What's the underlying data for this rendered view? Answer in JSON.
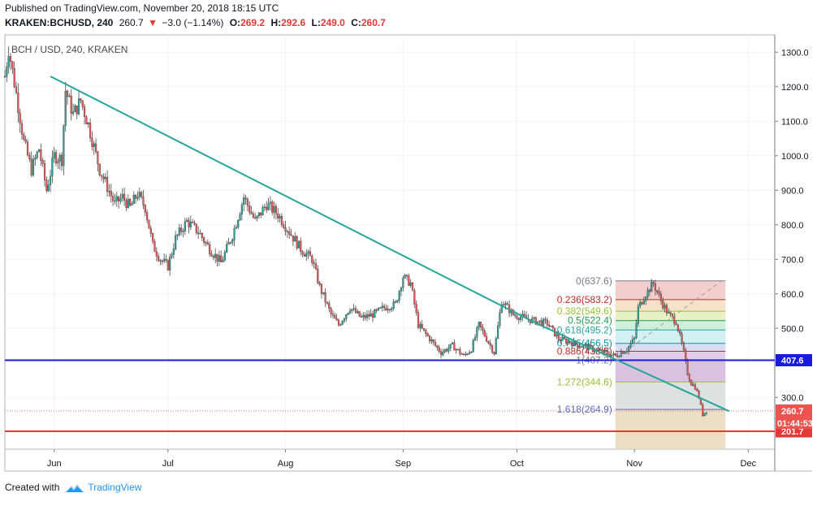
{
  "header": {
    "published": "Published on TradingView.com, November 20, 2018 18:15 UTC",
    "symbol": "KRAKEN:BCHUSD, 240",
    "last": "260.7",
    "change_arrow": "▼",
    "change": "−3.0 (−1.14%)",
    "open_label": "O:",
    "open": "269.2",
    "high_label": "H:",
    "high": "292.6",
    "low_label": "L:",
    "low": "249.0",
    "close_label": "C:",
    "close": "260.7"
  },
  "chart_data": {
    "type": "candlestick",
    "title": "BCH / USD, 240, KRAKEN",
    "x_ticks": [
      {
        "label": "Jun",
        "date": "2018-06-01"
      },
      {
        "label": "Jul",
        "date": "2018-07-01"
      },
      {
        "label": "Aug",
        "date": "2018-08-01"
      },
      {
        "label": "Sep",
        "date": "2018-09-01"
      },
      {
        "label": "Oct",
        "date": "2018-10-01"
      },
      {
        "label": "Nov",
        "date": "2018-11-01"
      },
      {
        "label": "Dec",
        "date": "2018-12-01"
      }
    ],
    "y_ticks": [
      "1300.0",
      "1200.0",
      "1100.0",
      "1000.0",
      "900.0",
      "800.0",
      "700.0",
      "600.0",
      "500.0",
      "300.0"
    ],
    "y_tick_values": [
      1300,
      1200,
      1100,
      1000,
      900,
      800,
      700,
      600,
      500,
      300
    ],
    "ylim": [
      150,
      1350
    ],
    "xlim": [
      "2018-05-19",
      "2018-12-08"
    ],
    "price_path": [
      [
        "2018-05-19",
        1230
      ],
      [
        "2018-05-20",
        1310
      ],
      [
        "2018-05-22",
        1180
      ],
      [
        "2018-05-24",
        1040
      ],
      [
        "2018-05-26",
        960
      ],
      [
        "2018-05-28",
        1020
      ],
      [
        "2018-05-30",
        900
      ],
      [
        "2018-06-01",
        1000
      ],
      [
        "2018-06-03",
        990
      ],
      [
        "2018-06-04",
        1190
      ],
      [
        "2018-06-06",
        1120
      ],
      [
        "2018-06-08",
        1160
      ],
      [
        "2018-06-10",
        1090
      ],
      [
        "2018-06-13",
        960
      ],
      [
        "2018-06-15",
        910
      ],
      [
        "2018-06-17",
        860
      ],
      [
        "2018-06-19",
        880
      ],
      [
        "2018-06-21",
        850
      ],
      [
        "2018-06-23",
        890
      ],
      [
        "2018-06-25",
        850
      ],
      [
        "2018-06-27",
        740
      ],
      [
        "2018-06-29",
        700
      ],
      [
        "2018-07-01",
        680
      ],
      [
        "2018-07-03",
        760
      ],
      [
        "2018-07-06",
        810
      ],
      [
        "2018-07-09",
        780
      ],
      [
        "2018-07-12",
        730
      ],
      [
        "2018-07-15",
        690
      ],
      [
        "2018-07-18",
        770
      ],
      [
        "2018-07-21",
        880
      ],
      [
        "2018-07-24",
        810
      ],
      [
        "2018-07-27",
        860
      ],
      [
        "2018-07-30",
        830
      ],
      [
        "2018-08-02",
        780
      ],
      [
        "2018-08-05",
        730
      ],
      [
        "2018-08-08",
        700
      ],
      [
        "2018-08-10",
        620
      ],
      [
        "2018-08-13",
        540
      ],
      [
        "2018-08-15",
        510
      ],
      [
        "2018-08-18",
        560
      ],
      [
        "2018-08-21",
        530
      ],
      [
        "2018-08-24",
        540
      ],
      [
        "2018-08-27",
        560
      ],
      [
        "2018-08-30",
        570
      ],
      [
        "2018-09-01",
        650
      ],
      [
        "2018-09-03",
        630
      ],
      [
        "2018-09-05",
        510
      ],
      [
        "2018-09-08",
        470
      ],
      [
        "2018-09-11",
        430
      ],
      [
        "2018-09-14",
        450
      ],
      [
        "2018-09-17",
        420
      ],
      [
        "2018-09-19",
        440
      ],
      [
        "2018-09-21",
        510
      ],
      [
        "2018-09-23",
        470
      ],
      [
        "2018-09-25",
        430
      ],
      [
        "2018-09-27",
        580
      ],
      [
        "2018-09-30",
        540
      ],
      [
        "2018-10-03",
        530
      ],
      [
        "2018-10-06",
        520
      ],
      [
        "2018-10-09",
        515
      ],
      [
        "2018-10-12",
        470
      ],
      [
        "2018-10-15",
        460
      ],
      [
        "2018-10-18",
        450
      ],
      [
        "2018-10-21",
        440
      ],
      [
        "2018-10-24",
        430
      ],
      [
        "2018-10-27",
        420
      ],
      [
        "2018-10-30",
        440
      ],
      [
        "2018-11-01",
        470
      ],
      [
        "2018-11-02",
        560
      ],
      [
        "2018-11-04",
        600
      ],
      [
        "2018-11-06",
        630
      ],
      [
        "2018-11-08",
        580
      ],
      [
        "2018-11-10",
        540
      ],
      [
        "2018-11-12",
        520
      ],
      [
        "2018-11-14",
        430
      ],
      [
        "2018-11-15",
        370
      ],
      [
        "2018-11-16",
        340
      ],
      [
        "2018-11-17",
        330
      ],
      [
        "2018-11-18",
        300
      ],
      [
        "2018-11-19",
        250
      ],
      [
        "2018-11-20",
        261
      ]
    ],
    "trendlines": [
      {
        "from": [
          "2018-05-31",
          1230
        ],
        "to": [
          "2018-10-06",
          515
        ],
        "color": "#26a69a"
      },
      {
        "from": [
          "2018-10-06",
          515
        ],
        "to": [
          "2018-11-26",
          260
        ],
        "color": "#26a69a"
      }
    ],
    "dashed_line": {
      "from": [
        "2018-10-28",
        420
      ],
      "to": [
        "2018-11-24",
        637.6
      ],
      "color": "#9e9e9e"
    },
    "horizontal_levels": [
      {
        "value": 407.6,
        "label": "407.6",
        "color": "#1a1adb"
      },
      {
        "value": 201.7,
        "label": "201.7",
        "color": "#e53935"
      },
      {
        "value": 260.7,
        "label": "260.7",
        "color": "#e57373",
        "dotted": true,
        "countdown": "01:44:53"
      }
    ],
    "fib_retracement": {
      "start_date": "2018-10-27",
      "end_date": "2018-11-25",
      "levels": [
        {
          "label": "0(637.6)",
          "value": 637.6,
          "color": "#787b86",
          "fill": "#f2c4c4"
        },
        {
          "label": "0.236(583.2)",
          "value": 583.2,
          "color": "#c62828",
          "fill": "#f5dcc2"
        },
        {
          "label": "0.382(549.6)",
          "value": 549.6,
          "color": "#9abf36",
          "fill": "#e2f0b8"
        },
        {
          "label": "0.5(522.4)",
          "value": 522.4,
          "color": "#1ea04f",
          "fill": "#c7ecd2"
        },
        {
          "label": "0.618(495.2)",
          "value": 495.2,
          "color": "#26a69a",
          "fill": "#cbeef0"
        },
        {
          "label": "0.786(456.5)",
          "value": 456.5,
          "color": "#0097a7",
          "fill": "#d3d7ef"
        },
        {
          "label": "0.886(433.5)",
          "value": 433.5,
          "color": "#c62828",
          "fill": "#dbc6e6"
        },
        {
          "label": "1(407.2)",
          "value": 407.2,
          "color": "#787b86",
          "fill": "#d5b6dc"
        },
        {
          "label": "1.272(344.6)",
          "value": 344.6,
          "color": "#9abf36",
          "fill": "#d8dcdc"
        },
        {
          "label": "1.618(264.9)",
          "value": 264.9,
          "color": "#5c6bc0",
          "fill": "#e8d8bb"
        }
      ],
      "bottom_value": 150
    }
  },
  "footer": {
    "created": "Created with",
    "brand": "TradingView"
  }
}
